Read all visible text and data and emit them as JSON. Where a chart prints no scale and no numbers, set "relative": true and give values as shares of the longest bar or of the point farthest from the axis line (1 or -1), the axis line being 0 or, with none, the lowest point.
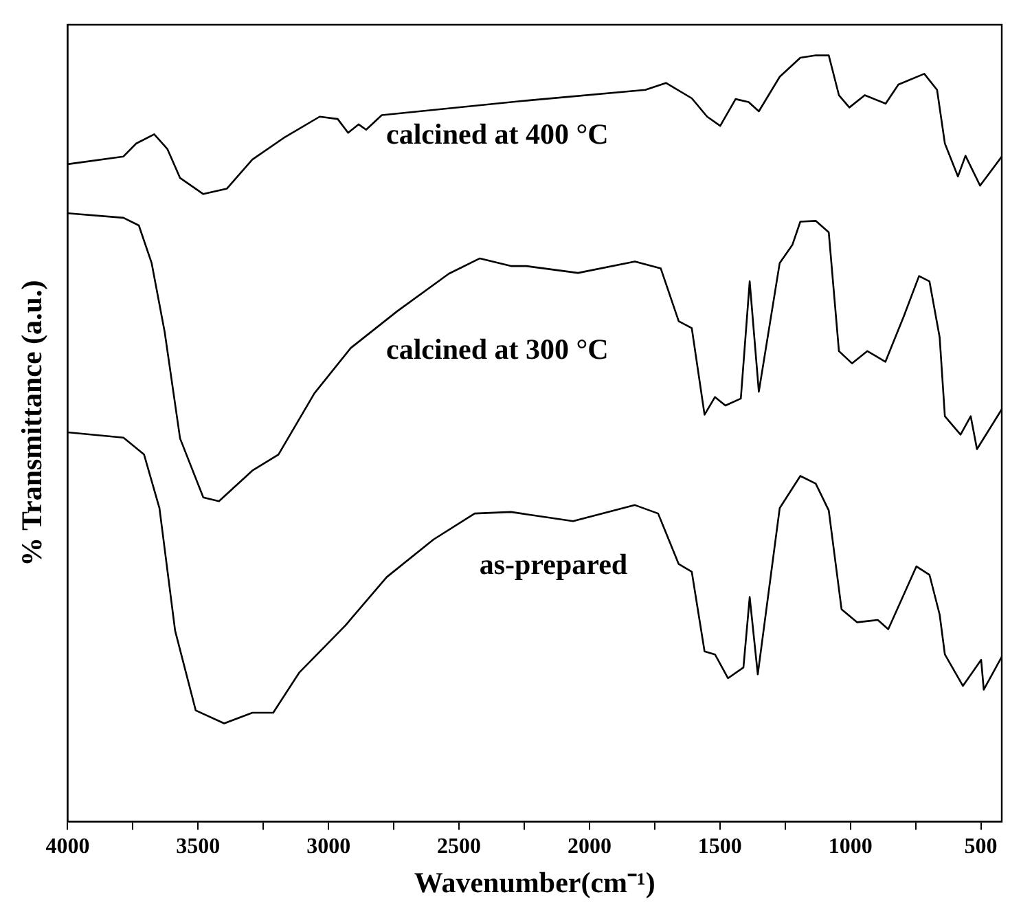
{
  "chart_data": {
    "type": "line",
    "xlabel": "Wavenumber(cm⁻¹)",
    "ylabel": "% Transmittance (a.u.)",
    "relative": true,
    "xlim": [
      4000,
      420
    ],
    "xticks": [
      4000,
      {
        "value": 3750,
        "label": null
      },
      3500,
      {
        "value": 3250,
        "label": null
      },
      3000,
      {
        "value": 2750,
        "label": null
      },
      2500,
      {
        "value": 2250,
        "label": null
      },
      2000,
      {
        "value": 1750,
        "label": null
      },
      1500,
      {
        "value": 1250,
        "label": null
      },
      1000,
      {
        "value": 750,
        "label": null
      },
      500
    ],
    "grid": false,
    "legend": false,
    "marker": "none",
    "line_style": "solid",
    "series": [
      {
        "name": "calcined at 400 °C",
        "color": "#000000",
        "x": [
          4000,
          3786,
          3737,
          3668,
          3618,
          3569,
          3480,
          3390,
          3292,
          3173,
          3034,
          2965,
          2925,
          2885,
          2856,
          2796,
          2242,
          1786,
          1707,
          1608,
          1549,
          1499,
          1440,
          1390,
          1351,
          1271,
          1192,
          1133,
          1083,
          1044,
          1004,
          945,
          865,
          816,
          717,
          668,
          638,
          588,
          559,
          503,
          420
        ],
        "values": [
          0.858,
          0.868,
          0.885,
          0.897,
          0.878,
          0.84,
          0.819,
          0.826,
          0.864,
          0.892,
          0.92,
          0.917,
          0.899,
          0.91,
          0.903,
          0.922,
          0.941,
          0.955,
          0.964,
          0.944,
          0.92,
          0.908,
          0.943,
          0.939,
          0.927,
          0.972,
          0.997,
          1.0,
          1.0,
          0.948,
          0.932,
          0.948,
          0.937,
          0.962,
          0.976,
          0.955,
          0.885,
          0.842,
          0.869,
          0.83,
          0.868
        ]
      },
      {
        "name": "calcined at 300 °C",
        "color": "#000000",
        "x": [
          4000,
          3786,
          3727,
          3678,
          3628,
          3569,
          3480,
          3420,
          3292,
          3192,
          3054,
          2915,
          2737,
          2539,
          2420,
          2301,
          2242,
          2044,
          1826,
          1727,
          1658,
          1608,
          1559,
          1519,
          1479,
          1420,
          1386,
          1351,
          1271,
          1222,
          1192,
          1133,
          1083,
          1044,
          994,
          935,
          866,
          796,
          737,
          697,
          658,
          638,
          578,
          539,
          515,
          420
        ],
        "values": [
          0.794,
          0.788,
          0.778,
          0.729,
          0.639,
          0.5,
          0.423,
          0.418,
          0.458,
          0.479,
          0.559,
          0.618,
          0.666,
          0.715,
          0.735,
          0.725,
          0.725,
          0.716,
          0.731,
          0.722,
          0.653,
          0.644,
          0.531,
          0.554,
          0.543,
          0.552,
          0.705,
          0.561,
          0.729,
          0.753,
          0.783,
          0.784,
          0.769,
          0.614,
          0.598,
          0.614,
          0.6,
          0.659,
          0.712,
          0.705,
          0.632,
          0.529,
          0.505,
          0.529,
          0.486,
          0.538
        ]
      },
      {
        "name": "as-prepared",
        "color": "#000000",
        "x": [
          4000,
          3786,
          3707,
          3648,
          3588,
          3509,
          3400,
          3292,
          3212,
          3113,
          2935,
          2777,
          2598,
          2440,
          2301,
          2242,
          2063,
          1826,
          1737,
          1658,
          1608,
          1559,
          1519,
          1469,
          1410,
          1386,
          1355,
          1271,
          1192,
          1133,
          1083,
          1034,
          974,
          895,
          855,
          747,
          697,
          658,
          638,
          569,
          499,
          489,
          420
        ],
        "values": [
          0.508,
          0.501,
          0.479,
          0.409,
          0.249,
          0.145,
          0.128,
          0.142,
          0.142,
          0.194,
          0.256,
          0.319,
          0.368,
          0.402,
          0.404,
          0.401,
          0.392,
          0.413,
          0.402,
          0.336,
          0.326,
          0.222,
          0.218,
          0.187,
          0.201,
          0.293,
          0.192,
          0.409,
          0.451,
          0.441,
          0.406,
          0.277,
          0.26,
          0.263,
          0.251,
          0.333,
          0.322,
          0.27,
          0.218,
          0.177,
          0.211,
          0.172,
          0.215
        ]
      }
    ]
  }
}
